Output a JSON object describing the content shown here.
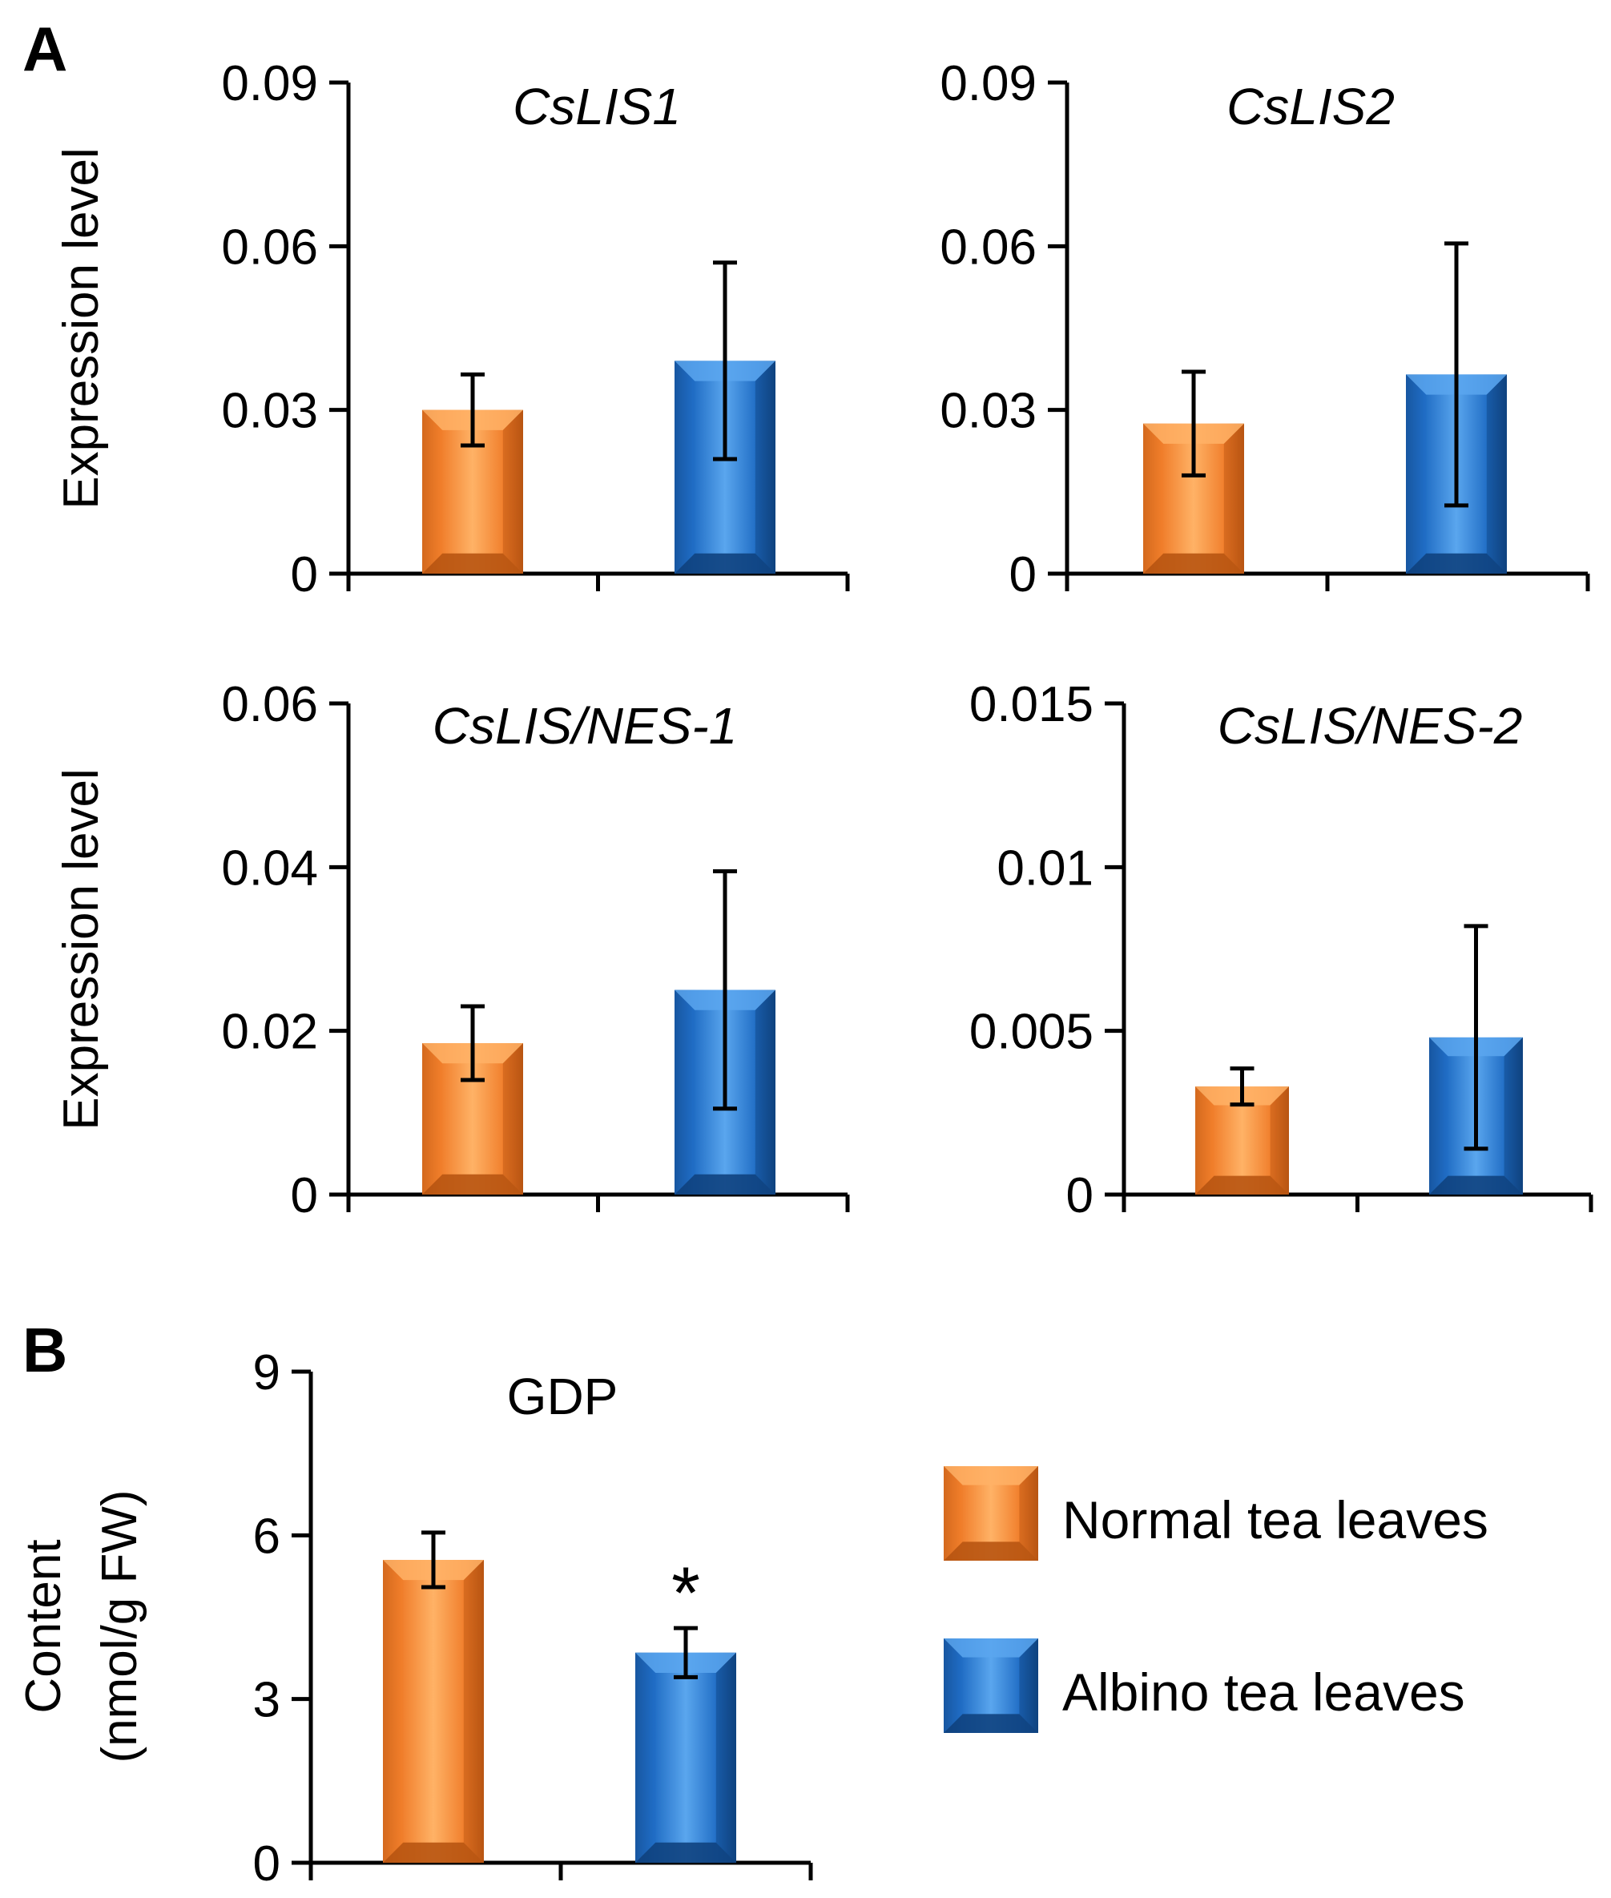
{
  "figure": {
    "panel_a_label": "A",
    "panel_b_label": "B"
  },
  "colors": {
    "normal": "#f07d2a",
    "normal_light": "#ffb266",
    "normal_dark": "#b85512",
    "albino": "#1f6cc4",
    "albino_light": "#5aa6ee",
    "albino_dark": "#0f427f"
  },
  "legend": {
    "items": [
      {
        "label": "Normal tea leaves",
        "color_key": "normal"
      },
      {
        "label": "Albino tea leaves",
        "color_key": "albino"
      }
    ]
  },
  "chart_data": [
    {
      "type": "bar",
      "title": "CsLIS1",
      "title_italic": true,
      "ylabel": "Expression level",
      "categories": [
        "Normal tea leaves",
        "Albino tea leaves"
      ],
      "values": [
        0.03,
        0.039
      ],
      "errors": [
        0.0065,
        0.018
      ],
      "ylim": [
        0,
        0.09
      ],
      "yticks": [
        "0",
        "0.03",
        "0.06",
        "0.09"
      ],
      "annotations": [
        "",
        ""
      ]
    },
    {
      "type": "bar",
      "title": "CsLIS2",
      "title_italic": true,
      "ylabel": "",
      "categories": [
        "Normal tea leaves",
        "Albino tea leaves"
      ],
      "values": [
        0.0275,
        0.0365
      ],
      "errors": [
        0.0095,
        0.024
      ],
      "ylim": [
        0,
        0.09
      ],
      "yticks": [
        "0",
        "0.03",
        "0.06",
        "0.09"
      ],
      "annotations": [
        "",
        ""
      ]
    },
    {
      "type": "bar",
      "title": "CsLIS/NES-1",
      "title_italic": true,
      "ylabel": "Expression level",
      "categories": [
        "Normal tea leaves",
        "Albino tea leaves"
      ],
      "values": [
        0.0185,
        0.025
      ],
      "errors": [
        0.0045,
        0.0145
      ],
      "ylim": [
        0,
        0.06
      ],
      "yticks": [
        "0",
        "0.02",
        "0.04",
        "0.06"
      ],
      "annotations": [
        "",
        ""
      ]
    },
    {
      "type": "bar",
      "title": "CsLIS/NES-2",
      "title_italic": true,
      "ylabel": "",
      "categories": [
        "Normal tea leaves",
        "Albino tea leaves"
      ],
      "values": [
        0.0033,
        0.0048
      ],
      "errors": [
        0.00055,
        0.0034
      ],
      "ylim": [
        0,
        0.015
      ],
      "yticks": [
        "0",
        "0.005",
        "0.01",
        "0.015"
      ],
      "annotations": [
        "",
        ""
      ]
    },
    {
      "type": "bar",
      "title": "GDP",
      "title_italic": false,
      "ylabel": "Content",
      "ylabel_line2": "(nmol/g FW)",
      "categories": [
        "Normal tea leaves",
        "Albino tea leaves"
      ],
      "values": [
        5.55,
        3.85
      ],
      "errors": [
        0.5,
        0.45
      ],
      "ylim": [
        0,
        9
      ],
      "yticks": [
        "0",
        "3",
        "6",
        "9"
      ],
      "annotations": [
        "",
        "*"
      ]
    }
  ]
}
